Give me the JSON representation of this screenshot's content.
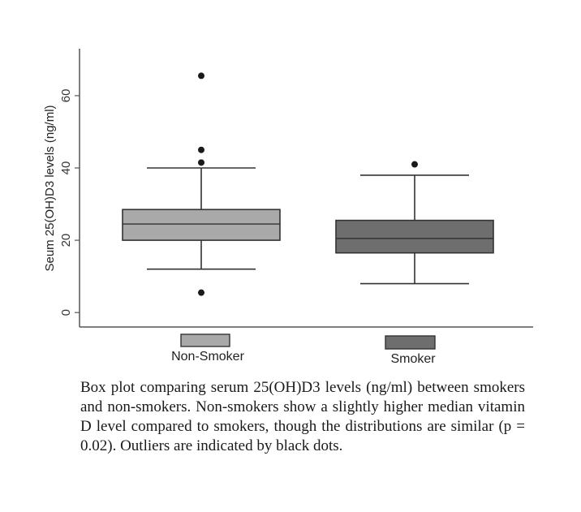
{
  "chart_data": {
    "type": "box",
    "ylabel": "Seum 25(OH)D3 levels (ng/ml)",
    "xlabel": "",
    "ylim": [
      -4,
      73
    ],
    "yticks": [
      0,
      20,
      40,
      60
    ],
    "grid": false,
    "categories": [
      "Non-Smoker",
      "Smoker"
    ],
    "legend": {
      "placement": "bottom",
      "entries": [
        {
          "label": "Non-Smoker",
          "color": "#a9a9a9"
        },
        {
          "label": "Smoker",
          "color": "#6e6e6e"
        }
      ]
    },
    "series": [
      {
        "name": "Non-Smoker",
        "color": "#a9a9a9",
        "whisker_low": 12,
        "q1": 20,
        "median": 24.5,
        "q3": 28.5,
        "whisker_high": 40,
        "outliers": [
          5.5,
          41.5,
          45,
          65.5
        ]
      },
      {
        "name": "Smoker",
        "color": "#6e6e6e",
        "whisker_low": 8,
        "q1": 16.5,
        "median": 20.5,
        "q3": 25.5,
        "whisker_high": 38,
        "outliers": [
          41
        ]
      }
    ]
  },
  "caption": "Box plot comparing serum 25(OH)D3 levels (ng/ml) between smokers and non-smokers. Non-smokers show a slightly higher median vitamin D level compared to smokers, though the distributions are similar (p = 0.02). Outliers are indicated by black dots."
}
